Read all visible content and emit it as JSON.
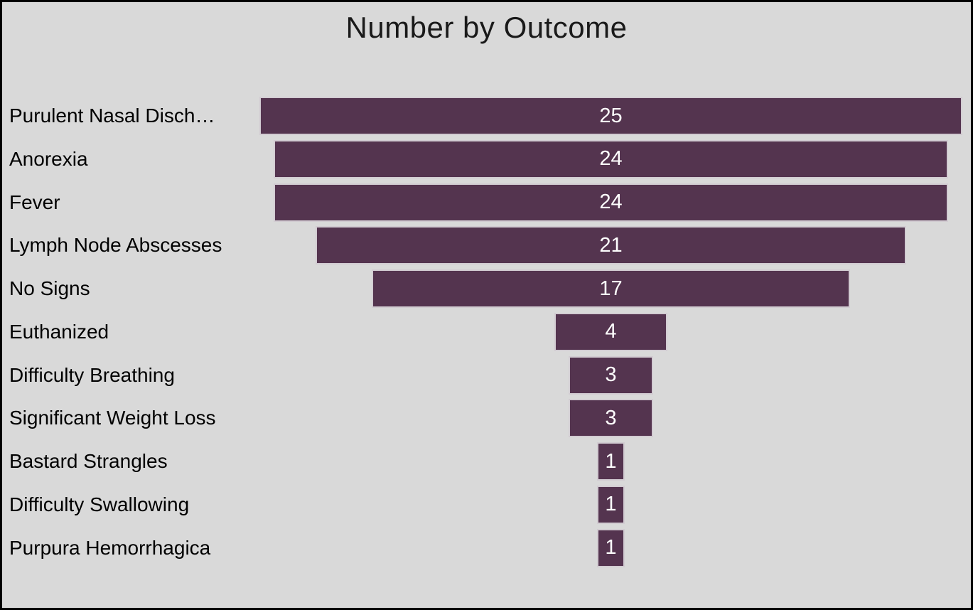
{
  "frame": {
    "background": "#d9d9d9",
    "border_color": "#000000"
  },
  "chart_data": {
    "type": "bar",
    "subtype": "funnel",
    "orientation": "horizontal-centered",
    "title": "Number by Outcome",
    "title_color": "#1a1a1a",
    "categories": [
      "Purulent Nasal Disch…",
      "Anorexia",
      "Fever",
      "Lymph Node Abscesses",
      "No Signs",
      "Euthanized",
      "Difficulty Breathing",
      "Significant Weight Loss",
      "Bastard Strangles",
      "Difficulty Swallowing",
      "Purpura Hemorrhagica"
    ],
    "values": [
      25,
      24,
      24,
      21,
      17,
      4,
      3,
      3,
      1,
      1,
      1
    ],
    "value_range": [
      0,
      25
    ],
    "bar_color": "#54344F",
    "bar_border_color": "#d2ccd2",
    "label_color": "#000000",
    "data_labels": {
      "position": "inside-center",
      "color": "#ffffff"
    },
    "legend": "none",
    "grid": false
  }
}
